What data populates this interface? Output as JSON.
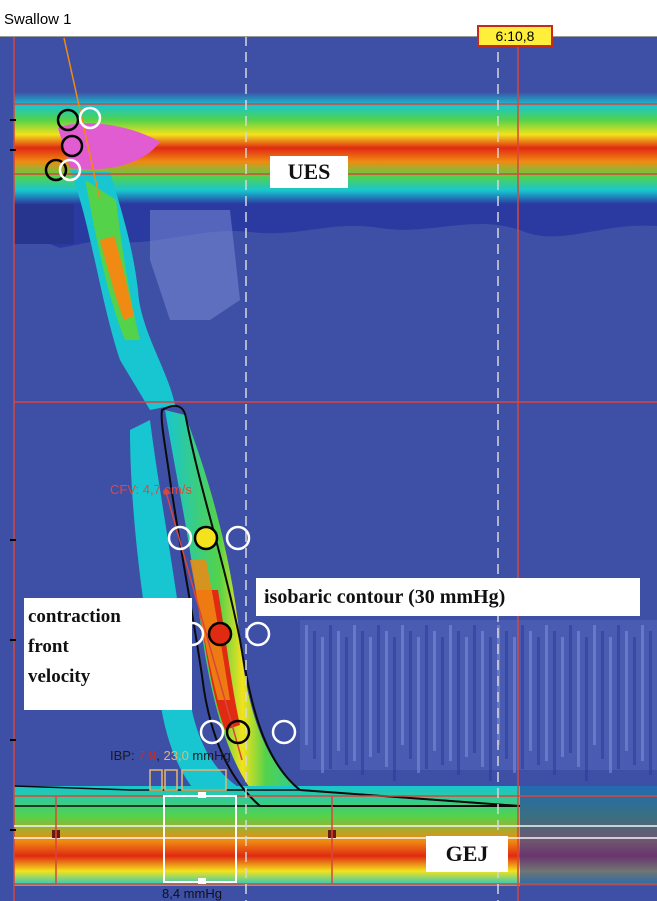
{
  "window": {
    "title": "Swallow 1",
    "time_readout": "6:10,8"
  },
  "labels": {
    "ues": "UES",
    "isobaric_contour": "isobaric contour (30 mmHg)",
    "contraction_front_velocity": [
      "contraction",
      "front",
      "velocity"
    ],
    "gej": "GEJ"
  },
  "readouts": {
    "cfv_prefix": "CFV: ",
    "cfv_value": "4,7 cm/s",
    "ibp_prefix": "IBP: ",
    "ibp_value_1": "7,9",
    "ibp_sep": ", ",
    "ibp_value_2": "23,0",
    "ibp_unit": " mmHg",
    "bottom_value": "8,4 mmHg"
  },
  "colors": {
    "background": "#3e4fa6",
    "low": "#2a3aa0",
    "mid": "#17c6d0",
    "green": "#54d24a",
    "yellow": "#f3e21c",
    "orange": "#f08a12",
    "red": "#e02a12",
    "peak": "#e15cd0",
    "cursor_line": "#d9463b",
    "dashed_line": "#d8d8d8"
  }
}
